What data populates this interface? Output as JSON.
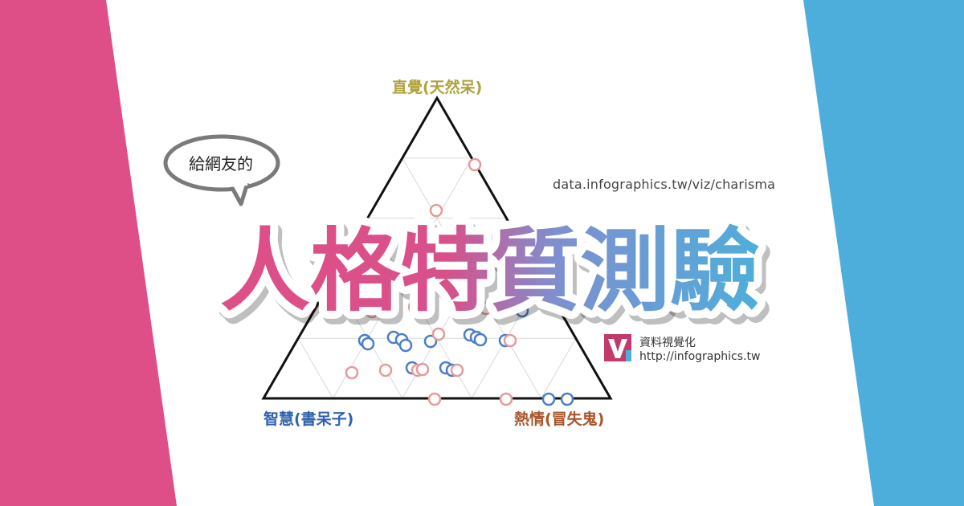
{
  "colors": {
    "left_band": "#de4f87",
    "right_band": "#4eaedb",
    "vertex_top": "#b0a33c",
    "vertex_left": "#2f62ad",
    "vertex_right": "#a8552a",
    "marker_blue": "#4a7dc9",
    "marker_pink": "#e39b9b",
    "logo": "#c23a6c"
  },
  "diagram": {
    "vertex_top_label": "直覺(天然呆)",
    "vertex_left_label": "智慧(書呆子)",
    "vertex_right_label": "熱情(冒失鬼)"
  },
  "speech_bubble": {
    "text": "給網友的"
  },
  "url_text": "data.infographics.tw/viz/charisma",
  "headline": {
    "text": "人格特質測驗"
  },
  "brand": {
    "icon": "v-logo-icon",
    "name": "資料視覺化",
    "url": "http://infographics.tw"
  }
}
